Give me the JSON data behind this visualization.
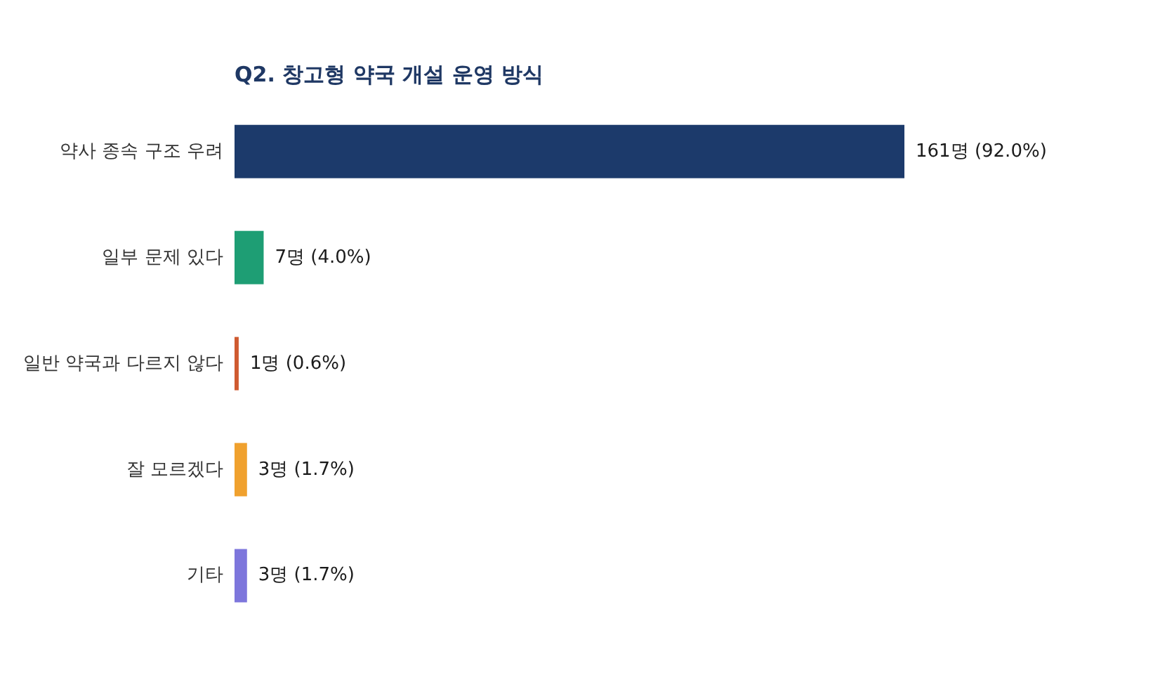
{
  "chart_data": {
    "type": "bar",
    "orientation": "horizontal",
    "title": "Q2. 창고형 약국 개설 운영 방식",
    "categories": [
      "약사 종속 구조 우려",
      "일부 문제 있다",
      "일반 약국과 다르지 않다",
      "잘 모르겠다",
      "기타"
    ],
    "values": [
      161,
      7,
      1,
      3,
      3
    ],
    "colors": [
      "#1c3a6b",
      "#1e9e74",
      "#cf5a30",
      "#f0a12e",
      "#7d76dc"
    ],
    "value_labels": [
      "161명 (92.0%)",
      "7명 (4.0%)",
      "1명 (0.6%)",
      "3명 (1.7%)",
      "3명 (1.7%)"
    ]
  }
}
